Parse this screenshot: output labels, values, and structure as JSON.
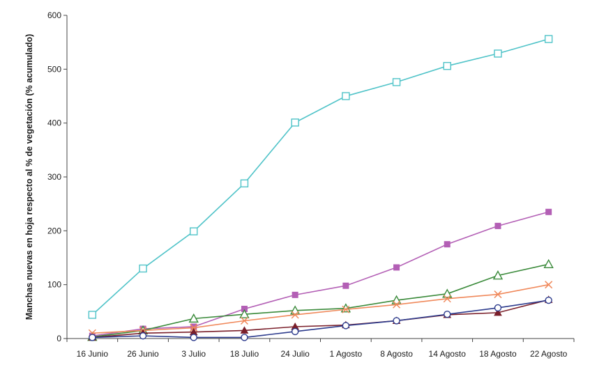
{
  "chart_data": {
    "type": "line",
    "title": "",
    "xlabel": "",
    "ylabel": "Manchas nuevas en hoja respecto al % de vegetación (% acumulado)",
    "categories": [
      "16 Junio",
      "26 Junio",
      "3 Julio",
      "18 Julio",
      "24 Julio",
      "1 Agosto",
      "8 Agosto",
      "14 Agosto",
      "18 Agosto",
      "22 Agosto"
    ],
    "ylim": [
      0,
      600
    ],
    "yticks": [
      0,
      100,
      200,
      300,
      400,
      500,
      600
    ],
    "grid": false,
    "legend": "none",
    "series": [
      {
        "color": "#4fc3c8",
        "marker": "square-open",
        "values": [
          44,
          130,
          199,
          288,
          401,
          450,
          476,
          506,
          529,
          556
        ]
      },
      {
        "color": "#b35fb5",
        "marker": "square-filled",
        "values": [
          5,
          18,
          22,
          55,
          81,
          98,
          132,
          175,
          209,
          235
        ]
      },
      {
        "color": "#3a8a3a",
        "marker": "triangle-open",
        "values": [
          3,
          15,
          37,
          45,
          52,
          56,
          71,
          83,
          117,
          138
        ]
      },
      {
        "color": "#f0885a",
        "marker": "x",
        "values": [
          10,
          15,
          20,
          33,
          44,
          54,
          63,
          74,
          82,
          100
        ]
      },
      {
        "color": "#7a1f2a",
        "marker": "triangle-filled",
        "values": [
          2,
          10,
          12,
          15,
          22,
          25,
          33,
          44,
          48,
          72
        ]
      },
      {
        "color": "#2b3a8c",
        "marker": "circle-open",
        "values": [
          2,
          5,
          2,
          2,
          13,
          24,
          33,
          45,
          57,
          71
        ]
      }
    ]
  }
}
